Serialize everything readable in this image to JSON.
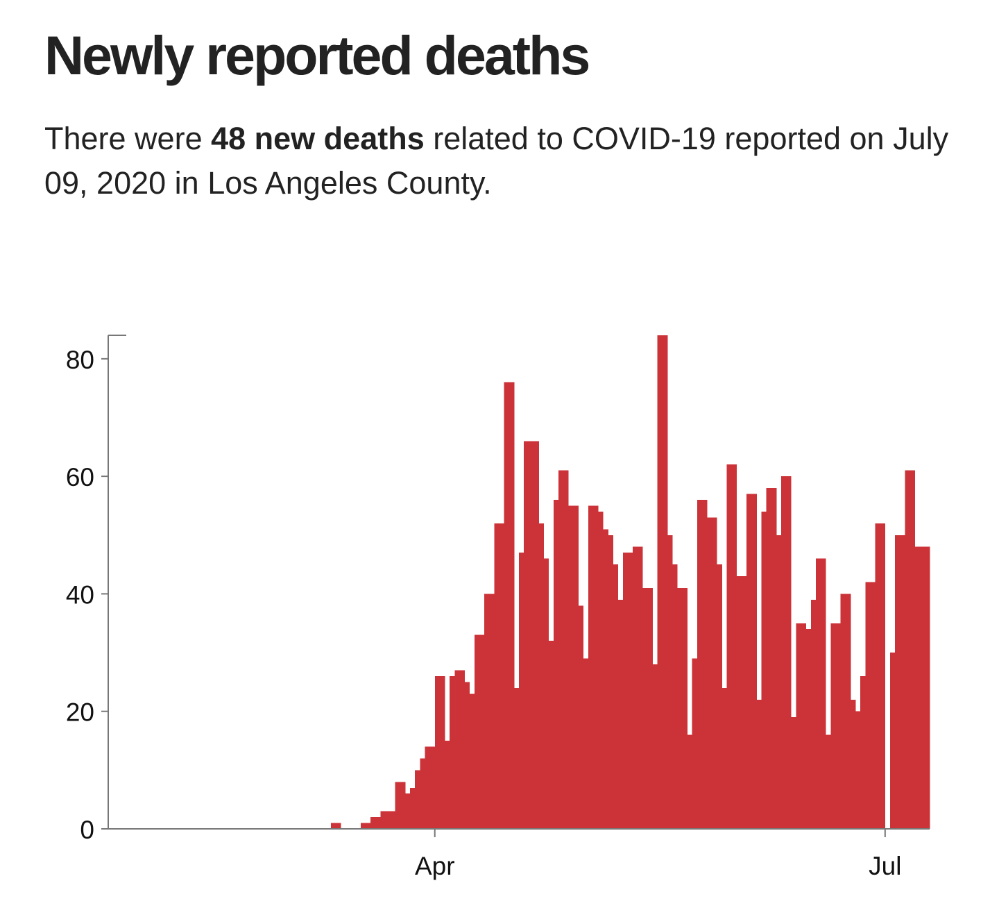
{
  "headline": "Newly reported deaths",
  "dek": {
    "prefix": "There were ",
    "highlight": "48 new deaths",
    "suffix": " related to COVID-19 reported on July 09, 2020 in Los Angeles County."
  },
  "colors": {
    "bar": "#cc3338",
    "axis": "#777777",
    "text": "#1f1f1f"
  },
  "chart_data": {
    "type": "bar",
    "title": "Newly reported deaths",
    "xlabel": "",
    "ylabel": "",
    "x_start": "2020-01-26",
    "x_end": "2020-07-09",
    "ylim": [
      0,
      84
    ],
    "yticks": [
      0,
      20,
      40,
      60,
      80
    ],
    "xticks": [
      {
        "label": "Apr",
        "date": "2020-04-01"
      },
      {
        "label": "Jul",
        "date": "2020-07-01"
      }
    ],
    "grid": false,
    "legend": "none",
    "categories": [
      "2020-03-11",
      "2020-03-12",
      "2020-03-13",
      "2020-03-14",
      "2020-03-15",
      "2020-03-16",
      "2020-03-17",
      "2020-03-18",
      "2020-03-19",
      "2020-03-20",
      "2020-03-21",
      "2020-03-22",
      "2020-03-23",
      "2020-03-24",
      "2020-03-25",
      "2020-03-26",
      "2020-03-27",
      "2020-03-28",
      "2020-03-29",
      "2020-03-30",
      "2020-03-31",
      "2020-04-01",
      "2020-04-02",
      "2020-04-03",
      "2020-04-04",
      "2020-04-05",
      "2020-04-06",
      "2020-04-07",
      "2020-04-08",
      "2020-04-09",
      "2020-04-10",
      "2020-04-11",
      "2020-04-12",
      "2020-04-13",
      "2020-04-14",
      "2020-04-15",
      "2020-04-16",
      "2020-04-17",
      "2020-04-18",
      "2020-04-19",
      "2020-04-20",
      "2020-04-21",
      "2020-04-22",
      "2020-04-23",
      "2020-04-24",
      "2020-04-25",
      "2020-04-26",
      "2020-04-27",
      "2020-04-28",
      "2020-04-29",
      "2020-04-30",
      "2020-05-01",
      "2020-05-02",
      "2020-05-03",
      "2020-05-04",
      "2020-05-05",
      "2020-05-06",
      "2020-05-07",
      "2020-05-08",
      "2020-05-09",
      "2020-05-10",
      "2020-05-11",
      "2020-05-12",
      "2020-05-13",
      "2020-05-14",
      "2020-05-15",
      "2020-05-16",
      "2020-05-17",
      "2020-05-18",
      "2020-05-19",
      "2020-05-20",
      "2020-05-21",
      "2020-05-22",
      "2020-05-23",
      "2020-05-24",
      "2020-05-25",
      "2020-05-26",
      "2020-05-27",
      "2020-05-28",
      "2020-05-29",
      "2020-05-30",
      "2020-05-31",
      "2020-06-01",
      "2020-06-02",
      "2020-06-03",
      "2020-06-04",
      "2020-06-05",
      "2020-06-06",
      "2020-06-07",
      "2020-06-08",
      "2020-06-09",
      "2020-06-10",
      "2020-06-11",
      "2020-06-12",
      "2020-06-13",
      "2020-06-14",
      "2020-06-15",
      "2020-06-16",
      "2020-06-17",
      "2020-06-18",
      "2020-06-19",
      "2020-06-20",
      "2020-06-21",
      "2020-06-22",
      "2020-06-23",
      "2020-06-24",
      "2020-06-25",
      "2020-06-26",
      "2020-06-27",
      "2020-06-28",
      "2020-06-29",
      "2020-06-30",
      "2020-07-01",
      "2020-07-02",
      "2020-07-03",
      "2020-07-04",
      "2020-07-05",
      "2020-07-06",
      "2020-07-07",
      "2020-07-08",
      "2020-07-09"
    ],
    "values": [
      1,
      1,
      0,
      0,
      0,
      0,
      1,
      1,
      2,
      2,
      3,
      3,
      3,
      8,
      8,
      6,
      7,
      10,
      12,
      14,
      14,
      26,
      26,
      15,
      26,
      27,
      27,
      25,
      23,
      33,
      33,
      40,
      40,
      52,
      52,
      76,
      76,
      24,
      47,
      66,
      66,
      66,
      52,
      46,
      32,
      56,
      61,
      61,
      55,
      55,
      38,
      29,
      55,
      55,
      54,
      51,
      50,
      45,
      39,
      47,
      47,
      48,
      48,
      41,
      41,
      28,
      84,
      84,
      50,
      45,
      41,
      41,
      16,
      29,
      56,
      56,
      53,
      53,
      45,
      24,
      62,
      62,
      43,
      43,
      57,
      57,
      22,
      54,
      58,
      58,
      50,
      60,
      60,
      19,
      35,
      35,
      34,
      39,
      46,
      46,
      16,
      35,
      35,
      40,
      40,
      22,
      20,
      26,
      42,
      42,
      52,
      52,
      0,
      30,
      50,
      50,
      61,
      61,
      48,
      48,
      48
    ]
  }
}
